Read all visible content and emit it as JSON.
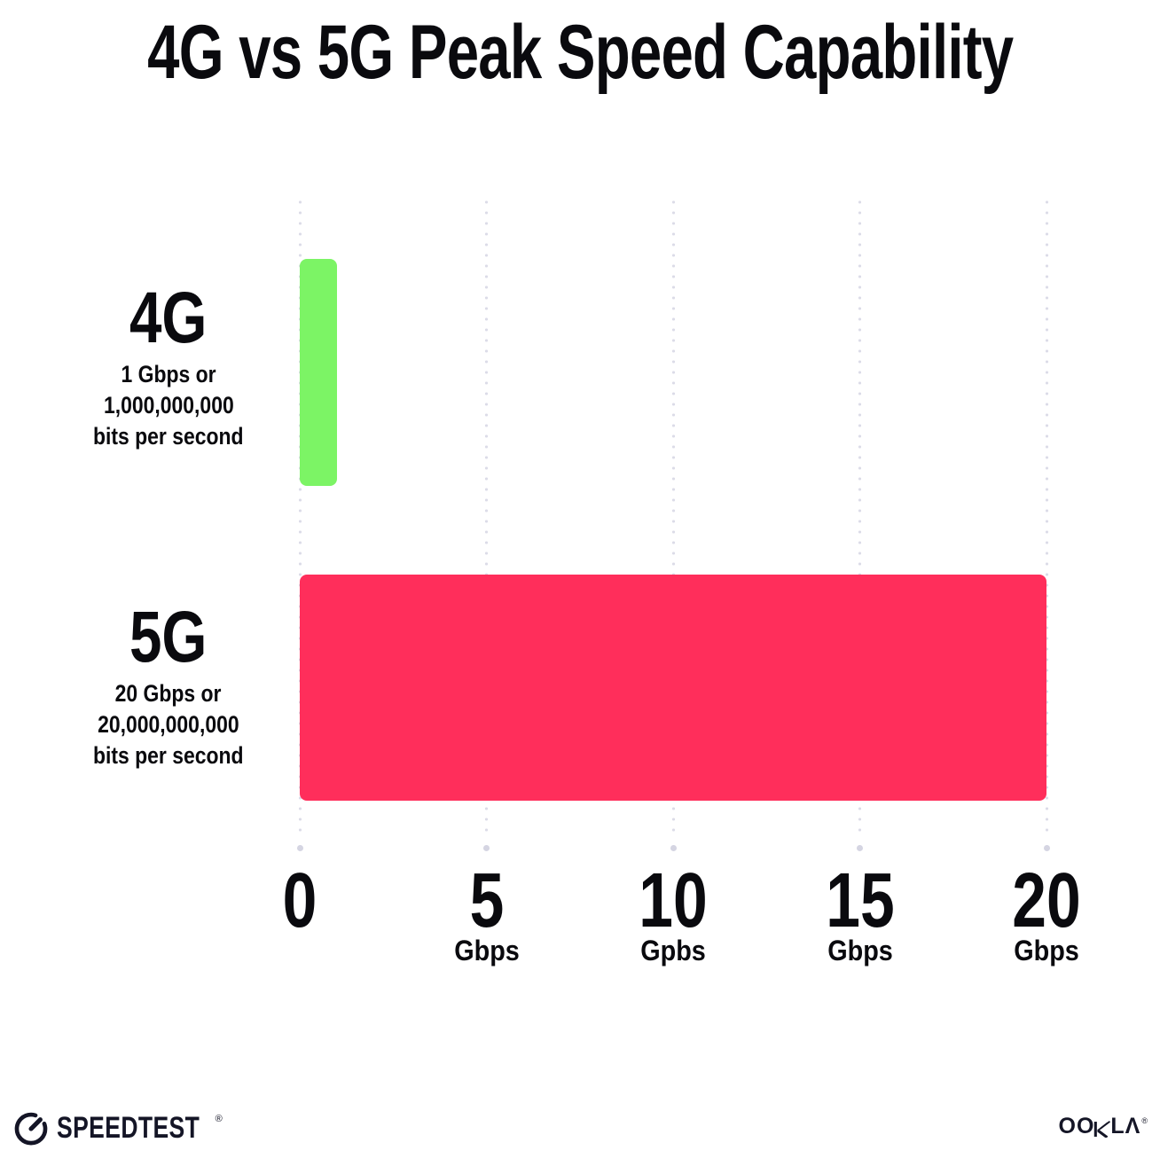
{
  "title": "4G vs 5G Peak Speed Capability",
  "chart_data": {
    "type": "bar",
    "orientation": "horizontal",
    "title": "4G vs 5G Peak Speed Capability",
    "categories": [
      "4G",
      "5G"
    ],
    "values": [
      1,
      20
    ],
    "value_unit": "Gbps",
    "row_sublabels": [
      [
        "1 Gbps or",
        "1,000,000,000",
        "bits per second"
      ],
      [
        "20 Gbps or",
        "20,000,000,000",
        "bits per second"
      ]
    ],
    "bar_colors": [
      "#7CF465",
      "#FF2E5B"
    ],
    "xlabel": "",
    "ylabel": "",
    "xlim": [
      0,
      20
    ],
    "x_ticks": [
      {
        "value": "0",
        "unit": ""
      },
      {
        "value": "5",
        "unit": "Gbps"
      },
      {
        "value": "10",
        "unit": "Gpbs"
      },
      {
        "value": "15",
        "unit": "Gbps"
      },
      {
        "value": "20",
        "unit": "Gbps"
      }
    ],
    "grid": "dotted-vertical-gridlines",
    "legend": "none"
  },
  "footer": {
    "speedtest_label": "SPEEDTEST",
    "speedtest_trademark": "®",
    "ookla_label": "OOKLA",
    "ookla_trademark": "®"
  },
  "colors": {
    "bar_green": "#7CF465",
    "bar_pink": "#FF2E5B",
    "grid_dot": "#DCDCE8",
    "grid_end_dot": "#D5D5E2",
    "text": "#0A0A0E",
    "footer_text": "#141526",
    "background": "#FFFFFF"
  }
}
